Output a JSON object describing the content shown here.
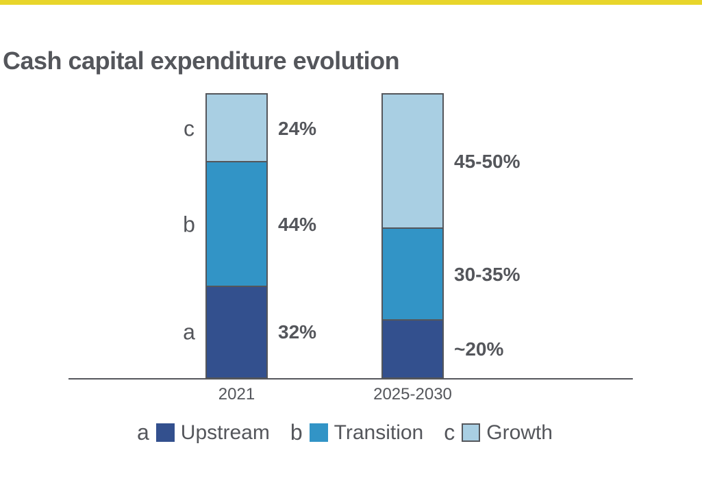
{
  "page": {
    "accent_bar_color": "#E8D52B",
    "background_color": "#FFFFFF",
    "text_color": "#54565B"
  },
  "header": {
    "title": "Cash capital expenditure evolution"
  },
  "chart_data": {
    "type": "bar",
    "stacked": true,
    "title": "Cash capital expenditure evolution",
    "categories": [
      "2021",
      "2025-2030"
    ],
    "series": [
      {
        "key": "a",
        "name": "Upstream",
        "color": "#33508E",
        "values": [
          32,
          20
        ],
        "labels": [
          "32%",
          "~20%"
        ]
      },
      {
        "key": "b",
        "name": "Transition",
        "color": "#3294C6",
        "values": [
          44,
          32.5
        ],
        "labels": [
          "44%",
          "30-35%"
        ]
      },
      {
        "key": "c",
        "name": "Growth",
        "color": "#A9CFE3",
        "values": [
          24,
          47.5
        ],
        "labels": [
          "24%",
          "45-50%"
        ]
      }
    ],
    "ylim": [
      0,
      100
    ],
    "unit": "percent of total cash capital expenditure",
    "grid": false,
    "legend_position": "bottom",
    "letter_annotations_on_first_bar": [
      "a",
      "b",
      "c"
    ],
    "bar_outline_color": "#54565B",
    "axis_line_color": "#54565B",
    "legend_bordered_swatches": [
      "Growth"
    ]
  }
}
